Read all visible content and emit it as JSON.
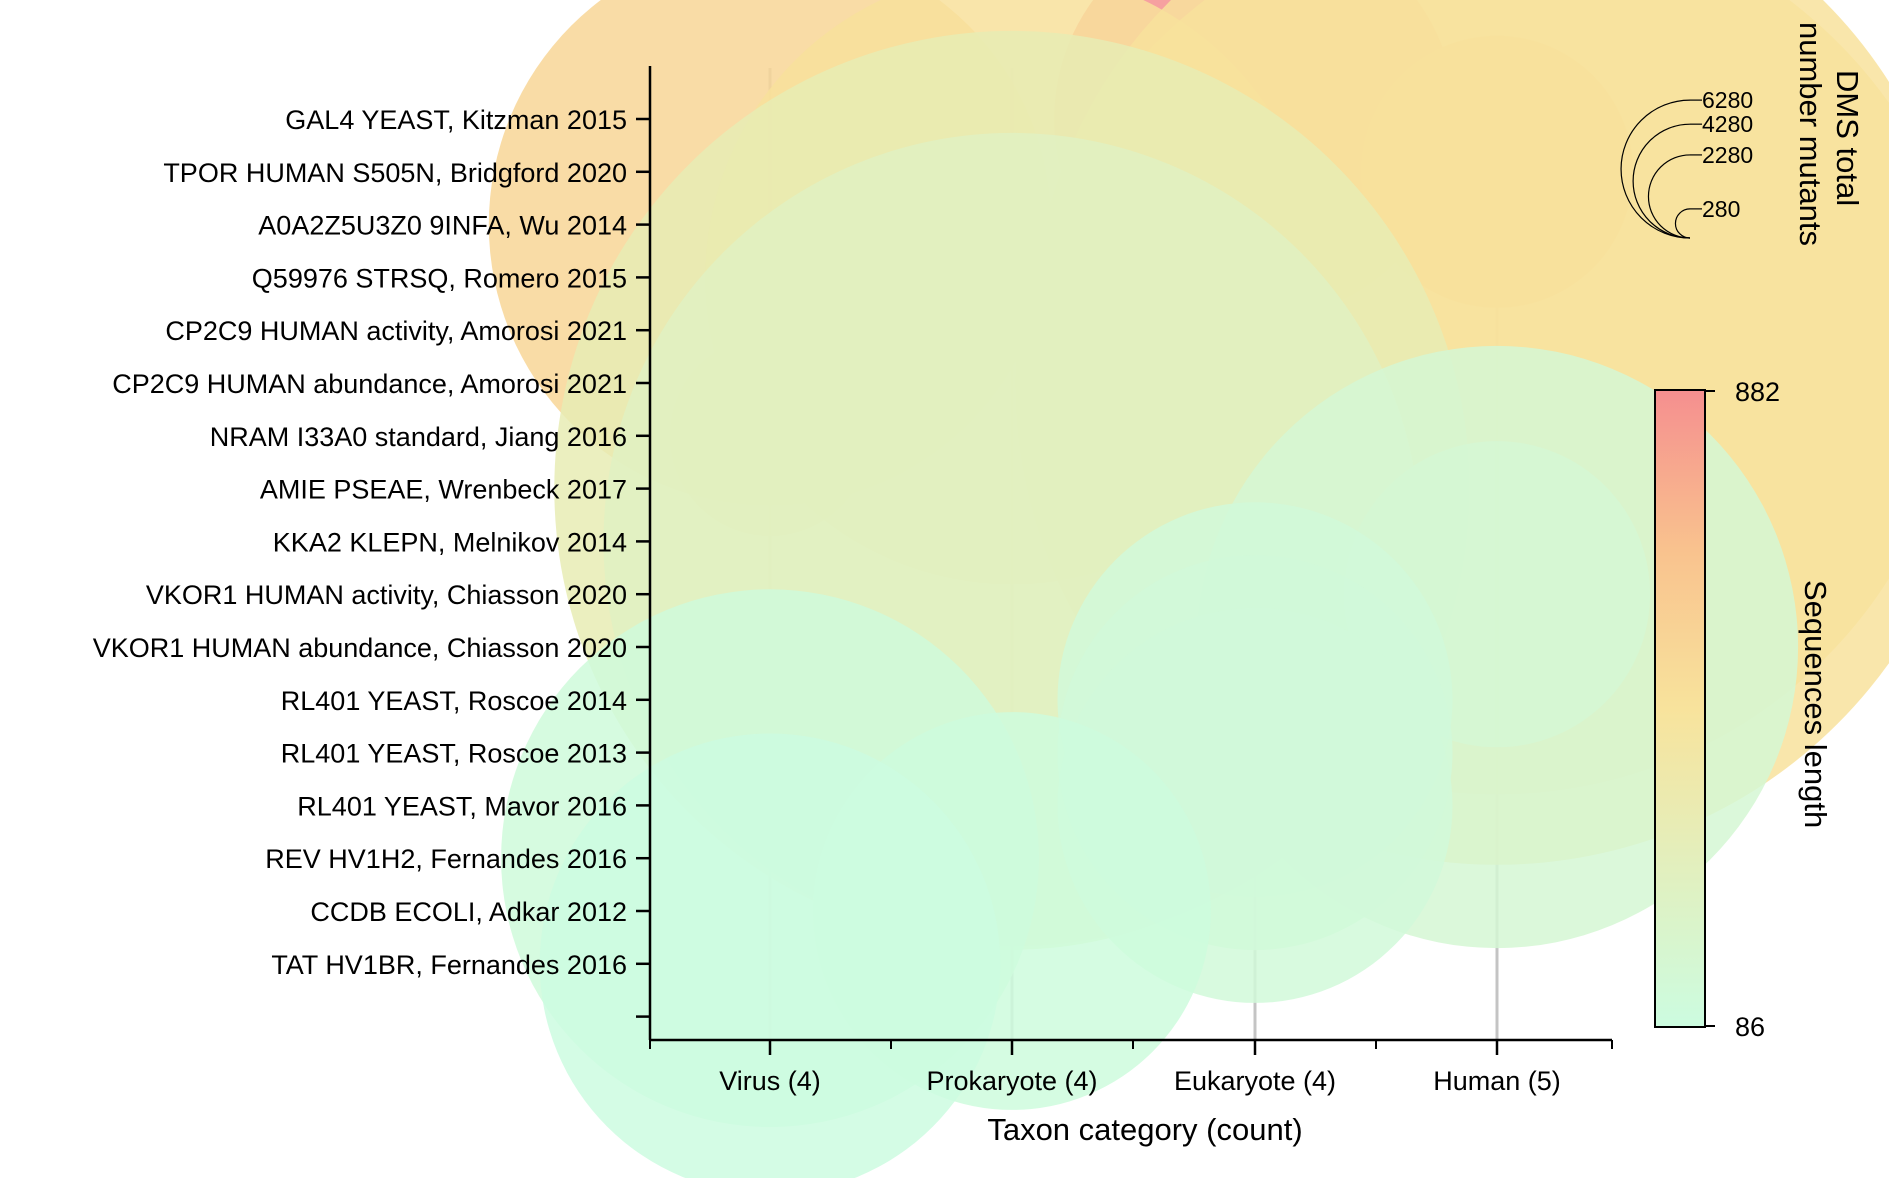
{
  "chart_data": {
    "type": "bubble",
    "xlabel": "Taxon category (count)",
    "categories": [
      "Virus (4)",
      "Prokaryote (4)",
      "Eukaryote (4)",
      "Human (5)"
    ],
    "points": [
      {
        "label": "GAL4 YEAST, Kitzman 2015",
        "category": "Eukaryote (4)",
        "mutants": 1200,
        "length": 882
      },
      {
        "label": "TPOR HUMAN S505N, Bridgford 2020",
        "category": "Human (5)",
        "mutants": 550,
        "length": 635
      },
      {
        "label": "A0A2Z5U3Z0 9INFA, Wu 2014",
        "category": "Virus (4)",
        "mutants": 2350,
        "length": 565
      },
      {
        "label": "Q59976 STRSQ, Romero 2015",
        "category": "Prokaryote (4)",
        "mutants": 2800,
        "length": 501
      },
      {
        "label": "CP2C9 HUMAN activity, Amorosi 2021",
        "category": "Human (5)",
        "mutants": 6400,
        "length": 490
      },
      {
        "label": "CP2C9 HUMAN abundance, Amorosi 2021",
        "category": "Human (5)",
        "mutants": 6900,
        "length": 490
      },
      {
        "label": "NRAM I33A0 standard, Jiang 2016",
        "category": "Virus (4)",
        "mutants": 298,
        "length": 469
      },
      {
        "label": "AMIE PSEAE, Wrenbeck 2017",
        "category": "Prokaryote (4)",
        "mutants": 6227,
        "length": 341
      },
      {
        "label": "KKA2 KLEPN, Melnikov 2014",
        "category": "Prokaryote (4)",
        "mutants": 4960,
        "length": 264
      },
      {
        "label": "VKOR1 HUMAN activity, Chiasson 2020",
        "category": "Human (5)",
        "mutants": 697,
        "length": 163
      },
      {
        "label": "VKOR1 HUMAN abundance, Chiasson 2020",
        "category": "Human (5)",
        "mutants": 2695,
        "length": 163
      },
      {
        "label": "RL401 YEAST, Roscoe 2014",
        "category": "Eukaryote (4)",
        "mutants": 1160,
        "length": 128
      },
      {
        "label": "RL401 YEAST, Roscoe 2013",
        "category": "Eukaryote (4)",
        "mutants": 1160,
        "length": 128
      },
      {
        "label": "RL401 YEAST, Mavor 2016",
        "category": "Eukaryote (4)",
        "mutants": 1160,
        "length": 128
      },
      {
        "label": "REV HV1H2, Fernandes 2016",
        "category": "Virus (4)",
        "mutants": 2150,
        "length": 116
      },
      {
        "label": "CCDB ECOLI, Adkar 2012",
        "category": "Prokaryote (4)",
        "mutants": 1176,
        "length": 101
      },
      {
        "label": "TAT HV1BR, Fernandes 2016",
        "category": "Virus (4)",
        "mutants": 1577,
        "length": 86
      }
    ],
    "size_legend": {
      "title": [
        "DMS total",
        "number mutants"
      ],
      "values": [
        6280,
        4280,
        2280,
        280
      ],
      "labels": [
        "6280",
        "4280",
        "2280",
        "280"
      ]
    },
    "color_scale": {
      "title": "Sequences length",
      "min": 86,
      "max": 882,
      "min_label": "86",
      "max_label": "882",
      "colors": [
        "#ccfce0",
        "#f8e39c",
        "#f9c28e",
        "#f58f8f"
      ]
    }
  }
}
